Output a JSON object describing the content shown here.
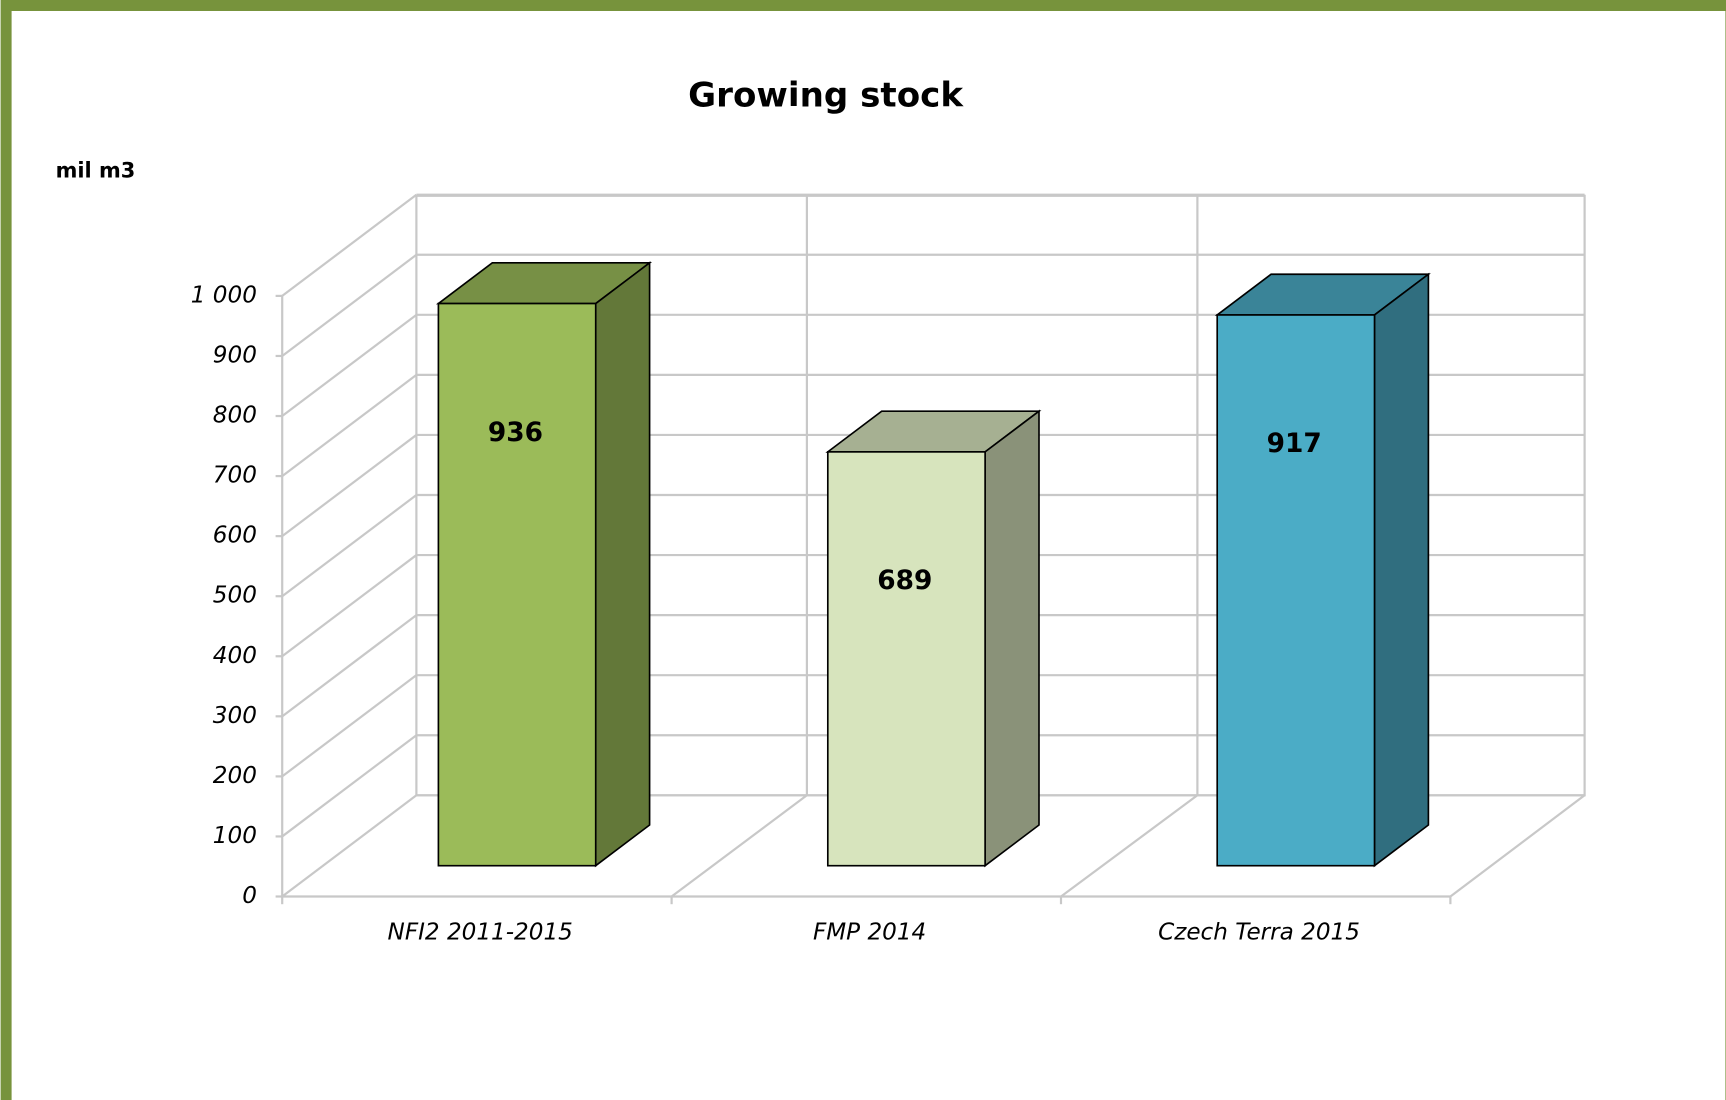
{
  "chart_data": {
    "type": "bar3d",
    "title": "Growing stock",
    "y_label": "mil m3",
    "categories": [
      "NFI2 2011-2015",
      "FMP 2014",
      "Czech Terra 2015"
    ],
    "values": [
      936,
      689,
      917
    ],
    "colors": [
      "#9bbb59",
      "#d7e4bd",
      "#4bacc6"
    ],
    "ylim": [
      0,
      1000
    ],
    "yticks": [
      0,
      100,
      200,
      300,
      400,
      500,
      600,
      700,
      800,
      900,
      {
        "value": 1000,
        "label": "1 000"
      }
    ],
    "grid": true
  }
}
